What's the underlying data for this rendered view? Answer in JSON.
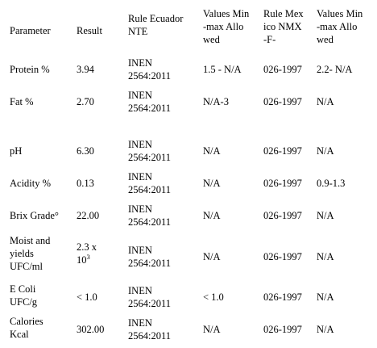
{
  "table": {
    "headers": [
      [
        "Parameter"
      ],
      [
        "Result"
      ],
      [
        "Rule Ecuador",
        "NTE"
      ],
      [
        "Values Min",
        "-max Allo",
        "wed"
      ],
      [
        "Rule Mex",
        "ico NMX",
        "-F-"
      ],
      [
        "Values Min",
        "-max Allo",
        "wed"
      ]
    ],
    "rows": [
      {
        "parameter": [
          "Protein %"
        ],
        "result": "3.94",
        "rule_ec": [
          "INEN",
          "2564:2011"
        ],
        "values_ec": "1.5 - N/A",
        "rule_mx": "026-1997",
        "values_mx": "2.2- N/A"
      },
      {
        "parameter": [
          "Fat %"
        ],
        "result": "2.70",
        "rule_ec": [
          "INEN",
          "2564:2011"
        ],
        "values_ec": "N/A-3",
        "rule_mx": "026-1997",
        "values_mx": "N/A"
      },
      {
        "parameter": [
          "pH"
        ],
        "result": "6.30",
        "rule_ec": [
          "INEN",
          "2564:2011"
        ],
        "values_ec": "N/A",
        "rule_mx": "026-1997",
        "values_mx": "N/A"
      },
      {
        "parameter": [
          "Acidity %"
        ],
        "result": "0.13",
        "rule_ec": [
          "INEN",
          "2564:2011"
        ],
        "values_ec": "N/A",
        "rule_mx": "026-1997",
        "values_mx": "0.9-1.3"
      },
      {
        "parameter": [
          "Brix Grade°"
        ],
        "result": "22.00",
        "rule_ec": [
          "INEN",
          "2564:2011"
        ],
        "values_ec": "N/A",
        "rule_mx": "026-1997",
        "values_mx": "N/A"
      },
      {
        "parameter": [
          "Moist and",
          "yields",
          "UFC/ml"
        ],
        "result": "2.3 x",
        "result_line2": "10",
        "result_exp": "3",
        "rule_ec": [
          "INEN",
          "2564:2011"
        ],
        "values_ec": "N/A",
        "rule_mx": "026-1997",
        "values_mx": "N/A"
      },
      {
        "parameter": [
          "E Coli",
          "UFC/g"
        ],
        "result": "< 1.0",
        "rule_ec": [
          "INEN",
          "2564:2011"
        ],
        "values_ec": "< 1.0",
        "rule_mx": "026-1997",
        "values_mx": "N/A"
      },
      {
        "parameter": [
          "Calories",
          "Kcal"
        ],
        "result": "302.00",
        "rule_ec": [
          "INEN",
          "2564:2011"
        ],
        "values_ec": "N/A",
        "rule_mx": "026-1997",
        "values_mx": "N/A"
      }
    ]
  }
}
